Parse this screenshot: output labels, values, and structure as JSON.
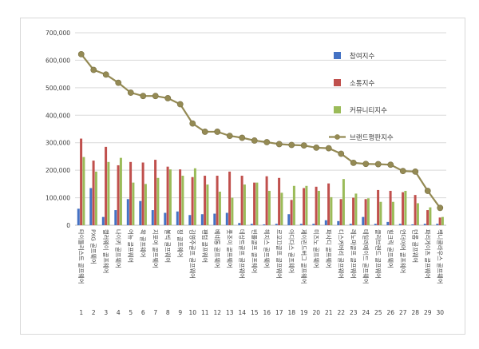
{
  "chart_data": {
    "type": "bar",
    "y_axis": {
      "min": 0,
      "max": 700000,
      "step": 100000,
      "tick_labels": [
        "0",
        "100,000",
        "200,000",
        "300,000",
        "400,000",
        "500,000",
        "600,000",
        "700,000"
      ]
    },
    "grid": "horizontal",
    "legend_position": "right",
    "ranks": [
      "1",
      "2",
      "3",
      "4",
      "5",
      "6",
      "7",
      "8",
      "9",
      "10",
      "11",
      "12",
      "13",
      "14",
      "15",
      "16",
      "17",
      "18",
      "19",
      "20",
      "21",
      "22",
      "23",
      "24",
      "25",
      "26",
      "27",
      "28",
      "29",
      "30"
    ],
    "categories": [
      "타이틀리스트 골프웨어",
      "PXG 골프웨어",
      "캘러웨이 골프웨어",
      "나이키 골프웨어",
      "어뉴 골프웨어",
      "왁 골프웨어",
      "지포어 골프웨어",
      "볼빅 골프웨어",
      "핑 골프웨어",
      "김영주골프 골프웨어",
      "팬텀 골프웨어",
      "베네통 골프웨어",
      "풋조이 골프웨어",
      "데상트골프 골프웨어",
      "빈폴골프 골프웨어",
      "헤지스 골프웨어",
      "르꼬끄골프 골프웨어",
      "아디다스 골프웨어",
      "제이린드버그 골프웨어",
      "미즈노 골프웨어",
      "파사디 골프웨어",
      "디스커버리 골프웨어",
      "레노마골프 골프웨어",
      "테일러메이드 골프웨어",
      "클리브랜드 골프웨어",
      "힐크릭 골프웨어",
      "언더아머 골프웨어",
      "던롭 골프웨어",
      "파리게이츠 골프웨어",
      "잭니클라우스 골프웨어"
    ],
    "series": [
      {
        "name": "참여지수",
        "color": "#4472C4",
        "kind": "bar",
        "values": [
          60000,
          135000,
          30000,
          55000,
          95000,
          88000,
          55000,
          45000,
          50000,
          37000,
          40000,
          42000,
          45000,
          8000,
          5000,
          3000,
          5000,
          40000,
          5000,
          5000,
          18000,
          15000,
          5000,
          30000,
          5000,
          12000,
          5000,
          3000,
          5000,
          5000
        ]
      },
      {
        "name": "소통지수",
        "color": "#C0504D",
        "kind": "bar",
        "values": [
          315000,
          235000,
          285000,
          218000,
          230000,
          228000,
          238000,
          213000,
          203000,
          175000,
          180000,
          180000,
          195000,
          180000,
          155000,
          178000,
          172000,
          92000,
          135000,
          140000,
          152000,
          95000,
          100000,
          95000,
          128000,
          125000,
          120000,
          110000,
          55000,
          28000
        ]
      },
      {
        "name": "커뮤니티지수",
        "color": "#9BBB59",
        "kind": "bar",
        "values": [
          248000,
          195000,
          230000,
          245000,
          155000,
          150000,
          172000,
          203000,
          180000,
          207000,
          148000,
          122000,
          100000,
          148000,
          155000,
          125000,
          118000,
          143000,
          143000,
          125000,
          102000,
          168000,
          115000,
          98000,
          85000,
          85000,
          125000,
          80000,
          65000,
          30000
        ]
      },
      {
        "name": "브랜드평판지수",
        "color": "#948A54",
        "kind": "line",
        "values": [
          622000,
          565000,
          548000,
          518000,
          482000,
          470000,
          470000,
          462000,
          440000,
          370000,
          340000,
          340000,
          325000,
          318000,
          308000,
          302000,
          295000,
          292000,
          290000,
          282000,
          280000,
          260000,
          227000,
          223000,
          222000,
          220000,
          197000,
          195000,
          125000,
          63000
        ]
      }
    ]
  }
}
